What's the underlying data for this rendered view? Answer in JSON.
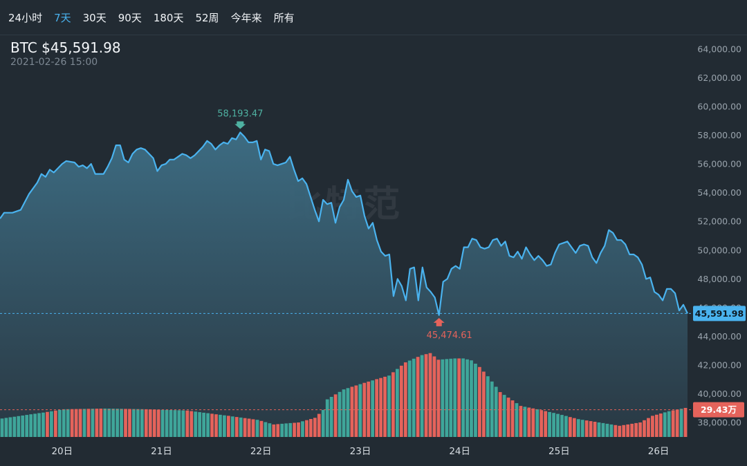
{
  "tabs": [
    {
      "label": "24小时",
      "active": false
    },
    {
      "label": "7天",
      "active": true
    },
    {
      "label": "30天",
      "active": false
    },
    {
      "label": "90天",
      "active": false
    },
    {
      "label": "180天",
      "active": false
    },
    {
      "label": "52周",
      "active": false
    },
    {
      "label": "今年来",
      "active": false
    },
    {
      "label": "所有",
      "active": false
    }
  ],
  "header": {
    "title": "BTC $45,591.98",
    "timestamp": "2021-02-26 15:00"
  },
  "watermark": "比特范",
  "colors": {
    "line": "#4ab3ef",
    "up_bar": "#3fa69a",
    "down_bar": "#e5635b",
    "high_label": "#4fb2a2",
    "low_label": "#e5635b",
    "current_tag": "#4ab3ef",
    "volume_tag": "#e5635b"
  },
  "chart_data": {
    "type": "line",
    "title": "BTC",
    "y_axis": {
      "min": 37000,
      "max": 65000,
      "ticks": [
        38000,
        40000,
        42000,
        44000,
        46000,
        48000,
        50000,
        52000,
        54000,
        56000,
        58000,
        60000,
        62000,
        64000
      ],
      "tick_labels": [
        "38,000.00",
        "40,000.00",
        "42,000.00",
        "44,000.00",
        "46,000.00",
        "48,000.00",
        "50,000.00",
        "52,000.00",
        "54,000.00",
        "56,000.00",
        "58,000.00",
        "60,000.00",
        "62,000.00",
        "64,000.00"
      ]
    },
    "x_axis": {
      "start": "2021-02-19 09:00",
      "end": "2021-02-26 15:00",
      "tick_labels": [
        "20日",
        "21日",
        "22日",
        "23日",
        "24日",
        "25日",
        "26日"
      ],
      "tick_hours": [
        15,
        39,
        63,
        87,
        111,
        135,
        159
      ]
    },
    "price_keypoints": [
      [
        0,
        52200
      ],
      [
        1,
        52600
      ],
      [
        3,
        52600
      ],
      [
        5,
        52800
      ],
      [
        7,
        53900
      ],
      [
        9,
        54700
      ],
      [
        10,
        55300
      ],
      [
        11,
        55100
      ],
      [
        12,
        55600
      ],
      [
        13,
        55400
      ],
      [
        15,
        56000
      ],
      [
        16,
        56200
      ],
      [
        18,
        56100
      ],
      [
        19,
        55800
      ],
      [
        20,
        55900
      ],
      [
        21,
        55700
      ],
      [
        22,
        56000
      ],
      [
        23,
        55300
      ],
      [
        25,
        55300
      ],
      [
        26,
        55800
      ],
      [
        27,
        56400
      ],
      [
        28,
        57300
      ],
      [
        29,
        57300
      ],
      [
        30,
        56300
      ],
      [
        31,
        56100
      ],
      [
        32,
        56700
      ],
      [
        33,
        57000
      ],
      [
        34,
        57100
      ],
      [
        35,
        57000
      ],
      [
        36,
        56700
      ],
      [
        37,
        56400
      ],
      [
        38,
        55500
      ],
      [
        39,
        55900
      ],
      [
        40,
        56000
      ],
      [
        41,
        56300
      ],
      [
        42,
        56300
      ],
      [
        43,
        56500
      ],
      [
        44,
        56700
      ],
      [
        45,
        56600
      ],
      [
        46,
        56400
      ],
      [
        47,
        56600
      ],
      [
        48,
        56900
      ],
      [
        49,
        57200
      ],
      [
        50,
        57600
      ],
      [
        51,
        57400
      ],
      [
        52,
        57000
      ],
      [
        53,
        57300
      ],
      [
        54,
        57500
      ],
      [
        55,
        57400
      ],
      [
        56,
        57800
      ],
      [
        57,
        57700
      ],
      [
        58,
        58193.47
      ],
      [
        59,
        57900
      ],
      [
        60,
        57500
      ],
      [
        61,
        57500
      ],
      [
        62,
        57600
      ],
      [
        63,
        56300
      ],
      [
        64,
        57000
      ],
      [
        65,
        56900
      ],
      [
        66,
        56000
      ],
      [
        67,
        55900
      ],
      [
        68,
        56000
      ],
      [
        69,
        56100
      ],
      [
        70,
        56500
      ],
      [
        71,
        55600
      ],
      [
        72,
        54800
      ],
      [
        73,
        55000
      ],
      [
        74,
        54600
      ],
      [
        75,
        53700
      ],
      [
        76,
        52800
      ],
      [
        77,
        52000
      ],
      [
        78,
        53500
      ],
      [
        79,
        53200
      ],
      [
        80,
        53300
      ],
      [
        81,
        51900
      ],
      [
        82,
        53000
      ],
      [
        83,
        53500
      ],
      [
        84,
        54900
      ],
      [
        85,
        54100
      ],
      [
        86,
        53700
      ],
      [
        87,
        53800
      ],
      [
        88,
        52400
      ],
      [
        89,
        51500
      ],
      [
        90,
        51900
      ],
      [
        91,
        50700
      ],
      [
        92,
        49900
      ],
      [
        93,
        49600
      ],
      [
        94,
        49700
      ],
      [
        95,
        46800
      ],
      [
        96,
        48000
      ],
      [
        97,
        47500
      ],
      [
        98,
        46500
      ],
      [
        99,
        48700
      ],
      [
        100,
        48800
      ],
      [
        101,
        46500
      ],
      [
        102,
        48800
      ],
      [
        103,
        47400
      ],
      [
        104,
        47100
      ],
      [
        105,
        46700
      ],
      [
        106,
        45474.61
      ],
      [
        107,
        47800
      ],
      [
        108,
        48000
      ],
      [
        109,
        48700
      ],
      [
        110,
        48900
      ],
      [
        111,
        48700
      ],
      [
        112,
        50200
      ],
      [
        113,
        50200
      ],
      [
        114,
        50800
      ],
      [
        115,
        50700
      ],
      [
        116,
        50200
      ],
      [
        117,
        50100
      ],
      [
        118,
        50200
      ],
      [
        119,
        50700
      ],
      [
        120,
        50800
      ],
      [
        121,
        50300
      ],
      [
        122,
        50600
      ],
      [
        123,
        49600
      ],
      [
        124,
        49500
      ],
      [
        125,
        49900
      ],
      [
        126,
        49400
      ],
      [
        127,
        50200
      ],
      [
        128,
        49700
      ],
      [
        129,
        49300
      ],
      [
        130,
        49600
      ],
      [
        131,
        49300
      ],
      [
        132,
        48900
      ],
      [
        133,
        49000
      ],
      [
        134,
        49800
      ],
      [
        135,
        50400
      ],
      [
        136,
        50500
      ],
      [
        137,
        50600
      ],
      [
        138,
        50200
      ],
      [
        139,
        49800
      ],
      [
        140,
        50300
      ],
      [
        141,
        50400
      ],
      [
        142,
        50300
      ],
      [
        143,
        49500
      ],
      [
        144,
        49100
      ],
      [
        145,
        49800
      ],
      [
        146,
        50300
      ],
      [
        147,
        51400
      ],
      [
        148,
        51200
      ],
      [
        149,
        50700
      ],
      [
        150,
        50700
      ],
      [
        151,
        50400
      ],
      [
        152,
        49700
      ],
      [
        153,
        49700
      ],
      [
        154,
        49500
      ],
      [
        155,
        49000
      ],
      [
        156,
        48000
      ],
      [
        157,
        48100
      ],
      [
        158,
        47100
      ],
      [
        159,
        46900
      ],
      [
        160,
        46500
      ],
      [
        161,
        47300
      ],
      [
        162,
        47300
      ],
      [
        163,
        47000
      ],
      [
        164,
        45800
      ],
      [
        165,
        46200
      ],
      [
        166,
        45591.98
      ]
    ],
    "volume_bars": {
      "count": 167,
      "unit": "万",
      "min_value": 25.3,
      "max_value": 38.6,
      "baseline_label": "29.43万",
      "baseline_value": 29.43,
      "anchors": [
        [
          0,
          28.1
        ],
        [
          10,
          29.0
        ],
        [
          15,
          29.5
        ],
        [
          25,
          29.6
        ],
        [
          35,
          29.5
        ],
        [
          45,
          29.3
        ],
        [
          55,
          28.5
        ],
        [
          62,
          27.9
        ],
        [
          66,
          27.2
        ],
        [
          72,
          27.5
        ],
        [
          76,
          28.2
        ],
        [
          78,
          29.4
        ],
        [
          79,
          31.0
        ],
        [
          83,
          32.5
        ],
        [
          88,
          33.5
        ],
        [
          94,
          34.6
        ],
        [
          98,
          36.6
        ],
        [
          102,
          37.7
        ],
        [
          104,
          38.0
        ],
        [
          106,
          37.0
        ],
        [
          110,
          37.2
        ],
        [
          112,
          37.2
        ],
        [
          114,
          36.9
        ],
        [
          116,
          35.9
        ],
        [
          118,
          34.5
        ],
        [
          121,
          32.1
        ],
        [
          126,
          30.0
        ],
        [
          130,
          29.5
        ],
        [
          135,
          28.8
        ],
        [
          140,
          28.0
        ],
        [
          145,
          27.5
        ],
        [
          150,
          27.0
        ],
        [
          155,
          27.5
        ],
        [
          158,
          28.5
        ],
        [
          162,
          29.2
        ],
        [
          166,
          29.7
        ]
      ]
    },
    "annotations": {
      "high": {
        "label": "58,193.47",
        "value": 58193.47,
        "hour": 58
      },
      "low": {
        "label": "45,474.61",
        "value": 45474.61,
        "hour": 106
      },
      "current": {
        "label": "45,591.98",
        "value": 45591.98
      },
      "volume": {
        "label": "29.43万"
      }
    }
  }
}
